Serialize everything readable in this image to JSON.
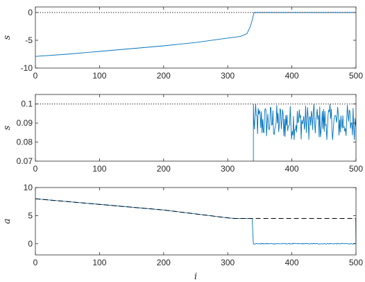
{
  "chart_data": [
    {
      "type": "line",
      "ylabel": "s",
      "xlabel": "",
      "xlim": [
        0,
        500
      ],
      "ylim": [
        -10,
        1
      ],
      "xticks": [
        "0",
        "100",
        "200",
        "300",
        "400",
        "500"
      ],
      "yticks": [
        "0",
        "-5",
        "-10"
      ],
      "ytick_values": [
        0,
        -5,
        -10
      ],
      "grid": false,
      "series": [
        {
          "style": "solid",
          "color": "#0072BD",
          "points": [
            [
              0,
              -7.9
            ],
            [
              50,
              -7.5
            ],
            [
              100,
              -7.0
            ],
            [
              150,
              -6.5
            ],
            [
              200,
              -6.0
            ],
            [
              250,
              -5.4
            ],
            [
              300,
              -4.6
            ],
            [
              320,
              -4.3
            ],
            [
              330,
              -3.8
            ],
            [
              335,
              -2.6
            ],
            [
              339,
              -1.0
            ],
            [
              341,
              0.0
            ],
            [
              500,
              0.0
            ]
          ]
        },
        {
          "style": "dotted",
          "color": "#000000",
          "points": [
            [
              0,
              0.0
            ],
            [
              500,
              0.0
            ]
          ]
        }
      ]
    },
    {
      "type": "line",
      "ylabel": "s",
      "xlabel": "",
      "xlim": [
        0,
        500
      ],
      "ylim": [
        0.07,
        0.105
      ],
      "xticks": [
        "0",
        "100",
        "200",
        "300",
        "400",
        "500"
      ],
      "yticks": [
        "0.1",
        "0.09",
        "0.08",
        "0.07"
      ],
      "ytick_values": [
        0.1,
        0.09,
        0.08,
        0.07
      ],
      "grid": false,
      "series": [
        {
          "style": "solid",
          "color": "#0072BD",
          "noise_range": [
            0.081,
            0.1
          ],
          "x_start": 340,
          "x_end": 500,
          "description_values": "noisy signal between 0.081 and 0.1 from i=340 to 500"
        },
        {
          "style": "dotted",
          "color": "#000000",
          "points": [
            [
              0,
              0.1
            ],
            [
              500,
              0.1
            ]
          ]
        }
      ]
    },
    {
      "type": "line",
      "ylabel": "a",
      "xlabel": "i",
      "xlim": [
        0,
        500
      ],
      "ylim": [
        -2,
        10
      ],
      "xticks": [
        "0",
        "100",
        "200",
        "300",
        "400",
        "500"
      ],
      "yticks": [
        "10",
        "5",
        "0"
      ],
      "ytick_values": [
        10,
        5,
        0
      ],
      "grid": false,
      "series": [
        {
          "style": "solid",
          "color": "#0072BD",
          "points": [
            [
              0,
              8.0
            ],
            [
              100,
              7.0
            ],
            [
              200,
              6.0
            ],
            [
              300,
              4.6
            ],
            [
              310,
              4.5
            ],
            [
              338,
              4.5
            ],
            [
              340,
              0.0
            ],
            [
              500,
              0.0
            ]
          ],
          "noise_after": 340
        },
        {
          "style": "dashed",
          "color": "#000000",
          "points": [
            [
              0,
              8.0
            ],
            [
              100,
              7.0
            ],
            [
              200,
              6.0
            ],
            [
              300,
              4.6
            ],
            [
              310,
              4.5
            ],
            [
              500,
              4.5
            ]
          ]
        }
      ]
    }
  ]
}
